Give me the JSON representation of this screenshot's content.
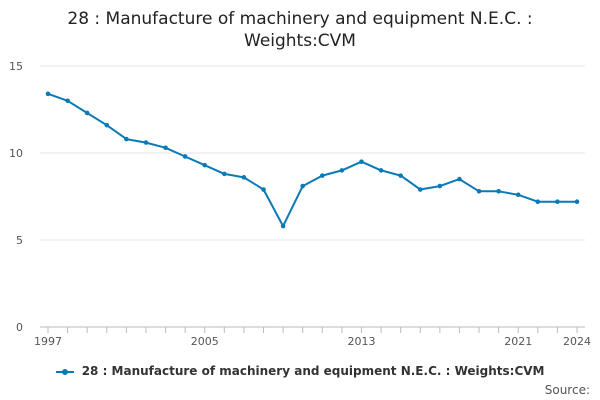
{
  "title_line1": "28 : Manufacture of machinery and equipment N.E.C. :",
  "title_line2": "Weights:CVM",
  "legend_label": "28 : Manufacture of machinery and equipment N.E.C. : Weights:CVM",
  "source_label": "Source:",
  "colors": {
    "line": "#0a7ab6",
    "grid": "#e6e6e6",
    "axis": "#bbbbbb"
  },
  "chart_data": {
    "type": "line",
    "ylim": [
      0,
      15
    ],
    "yticks": [
      0,
      5,
      10,
      15
    ],
    "xlim": [
      1997,
      2024
    ],
    "xticks_labeled": [
      1997,
      2005,
      2013,
      2021,
      2024
    ],
    "grid": true,
    "legend_position": "bottom",
    "series": [
      {
        "name": "28 : Manufacture of machinery and equipment N.E.C. : Weights:CVM",
        "x": [
          1997,
          1998,
          1999,
          2000,
          2001,
          2002,
          2003,
          2004,
          2005,
          2006,
          2007,
          2008,
          2009,
          2010,
          2011,
          2012,
          2013,
          2014,
          2015,
          2016,
          2017,
          2018,
          2019,
          2020,
          2021,
          2022,
          2023,
          2024
        ],
        "values": [
          13.4,
          13.0,
          12.3,
          11.6,
          10.8,
          10.6,
          10.3,
          9.8,
          9.3,
          8.8,
          8.6,
          7.9,
          5.8,
          8.1,
          8.7,
          9.0,
          9.5,
          9.0,
          8.7,
          7.9,
          8.1,
          8.5,
          7.8,
          7.8,
          7.6,
          7.2,
          7.2,
          7.2
        ]
      }
    ]
  }
}
